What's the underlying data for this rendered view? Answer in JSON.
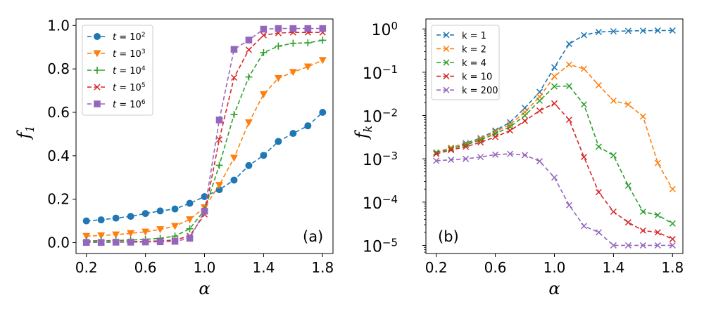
{
  "chart_data": [
    {
      "type": "line",
      "panel_label": "(a)",
      "xlabel": "α",
      "ylabel": "f",
      "ylabel_sub": "1",
      "xscale": "linear",
      "yscale": "linear",
      "xlim": [
        0.13,
        1.87
      ],
      "ylim": [
        -0.05,
        1.03
      ],
      "xticks": [
        0.2,
        0.6,
        1.0,
        1.4,
        1.8
      ],
      "xtick_labels": [
        "0.2",
        "0.6",
        "1.0",
        "1.4",
        "1.8"
      ],
      "yticks": [
        0.0,
        0.2,
        0.4,
        0.6,
        0.8,
        1.0
      ],
      "ytick_labels": [
        "0.0",
        "0.2",
        "0.4",
        "0.6",
        "0.8",
        "1.0"
      ],
      "legend_position": "top-left",
      "x": [
        0.2,
        0.3,
        0.4,
        0.5,
        0.6,
        0.7,
        0.8,
        0.9,
        1.0,
        1.1,
        1.2,
        1.3,
        1.4,
        1.5,
        1.6,
        1.7,
        1.8
      ],
      "series": [
        {
          "name": "t = 10",
          "name_exp": "2",
          "color": "#1f77b4",
          "marker": "circle",
          "values": [
            0.1,
            0.105,
            0.113,
            0.121,
            0.134,
            0.146,
            0.155,
            0.181,
            0.212,
            0.244,
            0.288,
            0.355,
            0.402,
            0.466,
            0.503,
            0.538,
            0.6
          ]
        },
        {
          "name": "t = 10",
          "name_exp": "3",
          "color": "#ff7f0e",
          "marker": "triangle-down",
          "values": [
            0.03,
            0.033,
            0.037,
            0.043,
            0.05,
            0.061,
            0.076,
            0.107,
            0.162,
            0.265,
            0.39,
            0.553,
            0.683,
            0.757,
            0.785,
            0.81,
            0.84
          ]
        },
        {
          "name": "t = 10",
          "name_exp": "4",
          "color": "#2ca02c",
          "marker": "plus",
          "values": [
            0.008,
            0.009,
            0.01,
            0.012,
            0.015,
            0.02,
            0.03,
            0.064,
            0.15,
            0.356,
            0.59,
            0.763,
            0.875,
            0.905,
            0.918,
            0.92,
            0.932
          ]
        },
        {
          "name": "t = 10",
          "name_exp": "5",
          "color": "#d62728",
          "marker": "x",
          "values": [
            0.003,
            0.003,
            0.004,
            0.005,
            0.006,
            0.008,
            0.012,
            0.031,
            0.13,
            0.475,
            0.76,
            0.888,
            0.955,
            0.965,
            0.968,
            0.968,
            0.968
          ]
        },
        {
          "name": "t = 10",
          "name_exp": "6",
          "color": "#9467bd",
          "marker": "square",
          "values": [
            0.001,
            0.001,
            0.002,
            0.002,
            0.003,
            0.004,
            0.006,
            0.02,
            0.145,
            0.565,
            0.89,
            0.933,
            0.983,
            0.986,
            0.986,
            0.986,
            0.986
          ]
        }
      ]
    },
    {
      "type": "line",
      "panel_label": "(b)",
      "xlabel": "α",
      "ylabel": "f",
      "ylabel_sub": "k",
      "xscale": "linear",
      "yscale": "log",
      "xlim": [
        0.13,
        1.87
      ],
      "ylim": [
        6.5e-06,
        1.7
      ],
      "xticks": [
        0.2,
        0.6,
        1.0,
        1.4,
        1.8
      ],
      "xtick_labels": [
        "0.2",
        "0.6",
        "1.0",
        "1.4",
        "1.8"
      ],
      "yticks": [
        1e-05,
        0.0001,
        0.001,
        0.01,
        0.1,
        1
      ],
      "ytick_labels": [
        {
          "base": "10",
          "exp": "−5"
        },
        {
          "base": "10",
          "exp": "−4"
        },
        {
          "base": "10",
          "exp": "−3"
        },
        {
          "base": "10",
          "exp": "−2"
        },
        {
          "base": "10",
          "exp": "−1"
        },
        {
          "base": "10",
          "exp": "0"
        }
      ],
      "legend_position": "top-left",
      "x": [
        0.2,
        0.3,
        0.4,
        0.5,
        0.6,
        0.7,
        0.8,
        0.9,
        1.0,
        1.1,
        1.2,
        1.3,
        1.4,
        1.5,
        1.6,
        1.7,
        1.8
      ],
      "series": [
        {
          "name": "k = 1",
          "color": "#1f77b4",
          "marker": "x",
          "values": [
            0.0014,
            0.0018,
            0.0023,
            0.003,
            0.0045,
            0.007,
            0.015,
            0.035,
            0.13,
            0.45,
            0.72,
            0.85,
            0.88,
            0.9,
            0.91,
            0.92,
            0.92
          ]
        },
        {
          "name": "k = 2",
          "color": "#ff7f0e",
          "marker": "x",
          "values": [
            0.0014,
            0.0018,
            0.0022,
            0.0029,
            0.0042,
            0.0062,
            0.012,
            0.027,
            0.08,
            0.15,
            0.12,
            0.05,
            0.022,
            0.018,
            0.0095,
            0.0008,
            0.0002
          ]
        },
        {
          "name": "k = 4",
          "color": "#2ca02c",
          "marker": "x",
          "values": [
            0.0014,
            0.0017,
            0.0021,
            0.0027,
            0.0038,
            0.0055,
            0.01,
            0.022,
            0.047,
            0.048,
            0.018,
            0.0019,
            0.0012,
            0.00024,
            6e-05,
            5e-05,
            3.2e-05
          ]
        },
        {
          "name": "k = 10",
          "color": "#d62728",
          "marker": "x",
          "values": [
            0.0013,
            0.0016,
            0.0019,
            0.0024,
            0.0032,
            0.0045,
            0.0075,
            0.013,
            0.019,
            0.008,
            0.0011,
            0.00017,
            6e-05,
            3.4e-05,
            2.2e-05,
            2e-05,
            1.4e-05
          ]
        },
        {
          "name": "k = 200",
          "color": "#9467bd",
          "marker": "x",
          "values": [
            0.0009,
            0.00095,
            0.001,
            0.0011,
            0.00125,
            0.0013,
            0.00122,
            0.00088,
            0.00037,
            8.5e-05,
            2.8e-05,
            2e-05,
            1e-05,
            1e-05,
            1e-05,
            1e-05,
            1e-05
          ]
        }
      ]
    }
  ]
}
